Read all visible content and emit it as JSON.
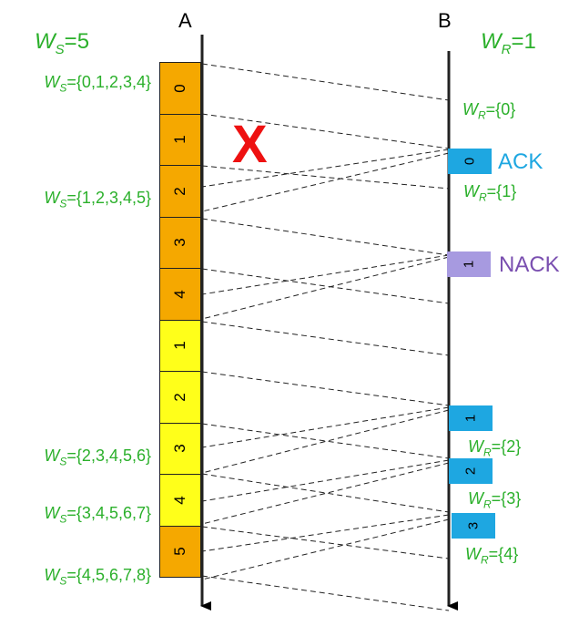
{
  "hosts": {
    "sender": "A",
    "receiver": "B"
  },
  "sender_window_size": {
    "symbol": "W",
    "sub": "S",
    "value": "=5"
  },
  "receiver_window_size": {
    "symbol": "W",
    "sub": "R",
    "value": "=1"
  },
  "lost_marker": "X",
  "sender_frames": [
    {
      "seq": "0",
      "color": "#f5a800"
    },
    {
      "seq": "1",
      "color": "#f5a800"
    },
    {
      "seq": "2",
      "color": "#f5a800"
    },
    {
      "seq": "3",
      "color": "#f5a800"
    },
    {
      "seq": "4",
      "color": "#f5a800"
    },
    {
      "seq": "1",
      "color": "#ffff1a"
    },
    {
      "seq": "2",
      "color": "#ffff1a"
    },
    {
      "seq": "3",
      "color": "#ffff1a"
    },
    {
      "seq": "4",
      "color": "#ffff1a"
    },
    {
      "seq": "5",
      "color": "#f5a800"
    }
  ],
  "sender_windows": [
    {
      "sub": "S",
      "value": "={0,1,2,3,4}"
    },
    {
      "sub": "S",
      "value": "={1,2,3,4,5}"
    },
    {
      "sub": "S",
      "value": "={2,3,4,5,6}"
    },
    {
      "sub": "S",
      "value": "={3,4,5,6,7}"
    },
    {
      "sub": "S",
      "value": "={4,5,6,7,8}"
    }
  ],
  "receiver_windows": [
    {
      "sub": "R",
      "value": "={0}"
    },
    {
      "sub": "R",
      "value": "={1}"
    },
    {
      "sub": "R",
      "value": "={2}"
    },
    {
      "sub": "R",
      "value": "={3}"
    },
    {
      "sub": "R",
      "value": "={4}"
    }
  ],
  "receiver_replies": [
    {
      "seq": "0",
      "color": "#1ea7e1",
      "label": "ACK"
    },
    {
      "seq": "1",
      "color": "#a79ae0",
      "label": "NACK"
    },
    {
      "seq": "1",
      "color": "#1ea7e1",
      "label": ""
    },
    {
      "seq": "2",
      "color": "#1ea7e1",
      "label": ""
    },
    {
      "seq": "3",
      "color": "#1ea7e1",
      "label": ""
    }
  ]
}
